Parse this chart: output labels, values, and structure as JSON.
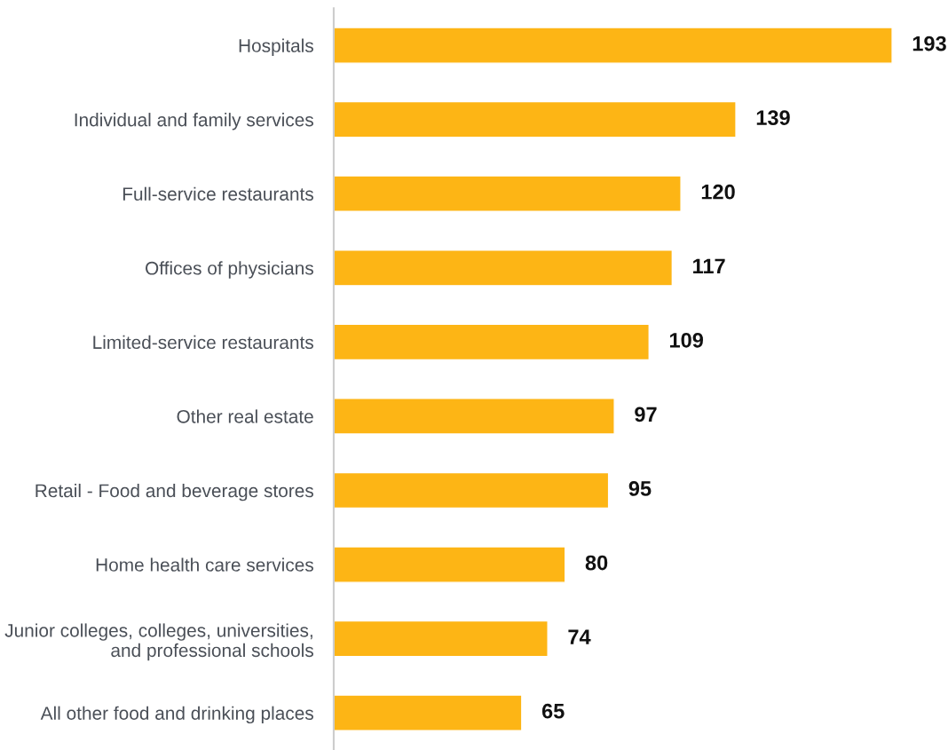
{
  "chart_data": {
    "type": "bar",
    "orientation": "horizontal",
    "categories": [
      "Hospitals",
      "Individual and family services",
      "Full-service restaurants",
      "Offices of physicians",
      "Limited-service restaurants",
      "Other real estate",
      "Retail - Food and beverage stores",
      "Home health care services",
      "Junior colleges, colleges, universities,\nand professional schools",
      "All other food and drinking places"
    ],
    "values": [
      193,
      139,
      120,
      117,
      109,
      97,
      95,
      80,
      74,
      65
    ],
    "color": "#fdb515",
    "data_labels": true,
    "grid": false,
    "legend": false,
    "tick_labels": "y"
  }
}
